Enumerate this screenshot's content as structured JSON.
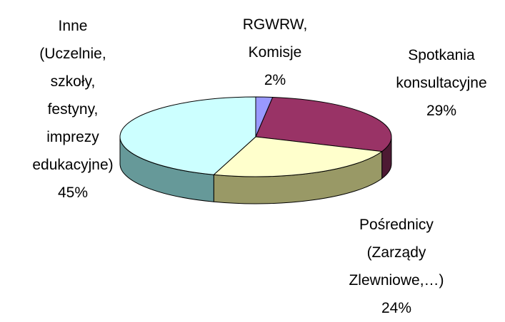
{
  "chart_data": {
    "type": "pie3d",
    "categories": [
      "RGWRW, Komisje",
      "Spotkania konsultacyjne",
      "Pośrednicy (Zarządy Zlewniowe,…)",
      "Inne (Uczelnie, szkoły, festyny, imprezy edukacyjne)"
    ],
    "values": [
      2,
      29,
      24,
      45
    ],
    "value_labels": [
      "2%",
      "29%",
      "24%",
      "45%"
    ],
    "colors": [
      "#9999ff",
      "#993366",
      "#ffffcc",
      "#ccffff"
    ],
    "side_colors": [
      "#5c5c99",
      "#4d1a33",
      "#999966",
      "#669999"
    ]
  }
}
